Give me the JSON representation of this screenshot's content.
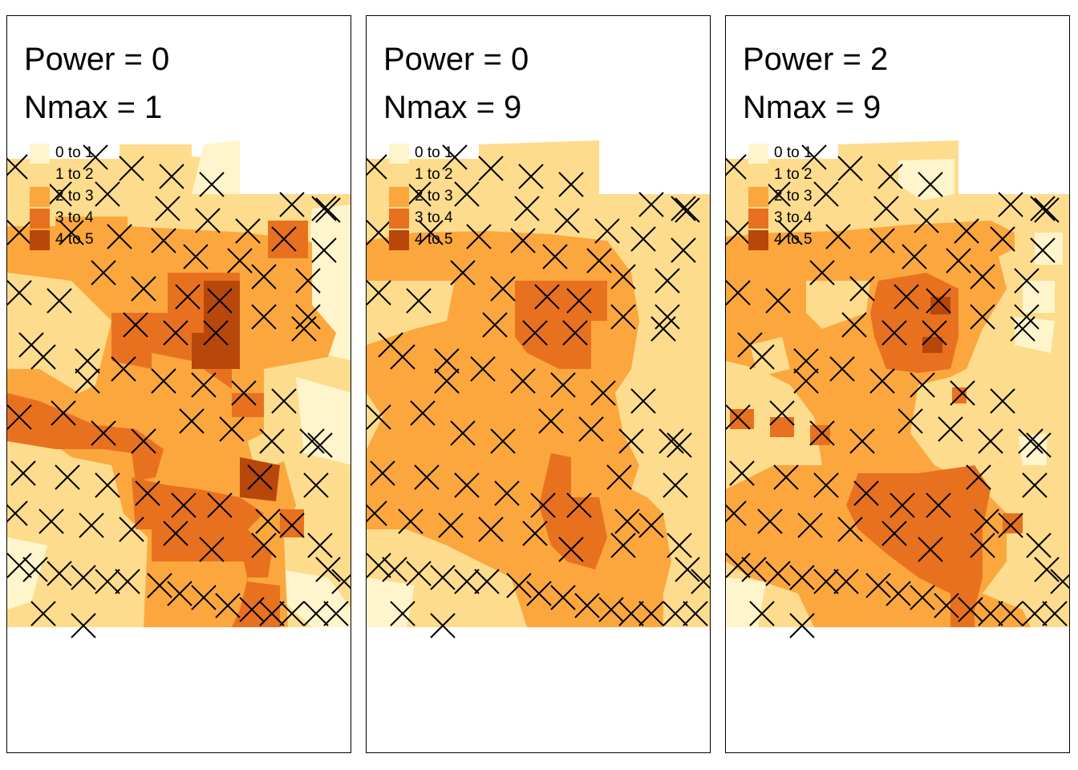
{
  "colors": [
    "#FFF5CC",
    "#FDDC8E",
    "#FBA73E",
    "#E8711F",
    "#B8470B"
  ],
  "legend": [
    {
      "label": "0 to 1",
      "color": "#FFF5CC"
    },
    {
      "label": "1 to 2",
      "color": "#FDDC8E"
    },
    {
      "label": "2 to 3",
      "color": "#FBA73E"
    },
    {
      "label": "3 to 4",
      "color": "#E8711F"
    },
    {
      "label": "4 to 5",
      "color": "#B8470B"
    }
  ],
  "panels": [
    {
      "power_label": "Power = 0",
      "nmax_label": "Nmax = 1"
    },
    {
      "power_label": "Power = 0",
      "nmax_label": "Nmax = 9"
    },
    {
      "power_label": "Power = 2",
      "nmax_label": "Nmax = 9"
    }
  ],
  "sample_marker": "cross-marker"
}
